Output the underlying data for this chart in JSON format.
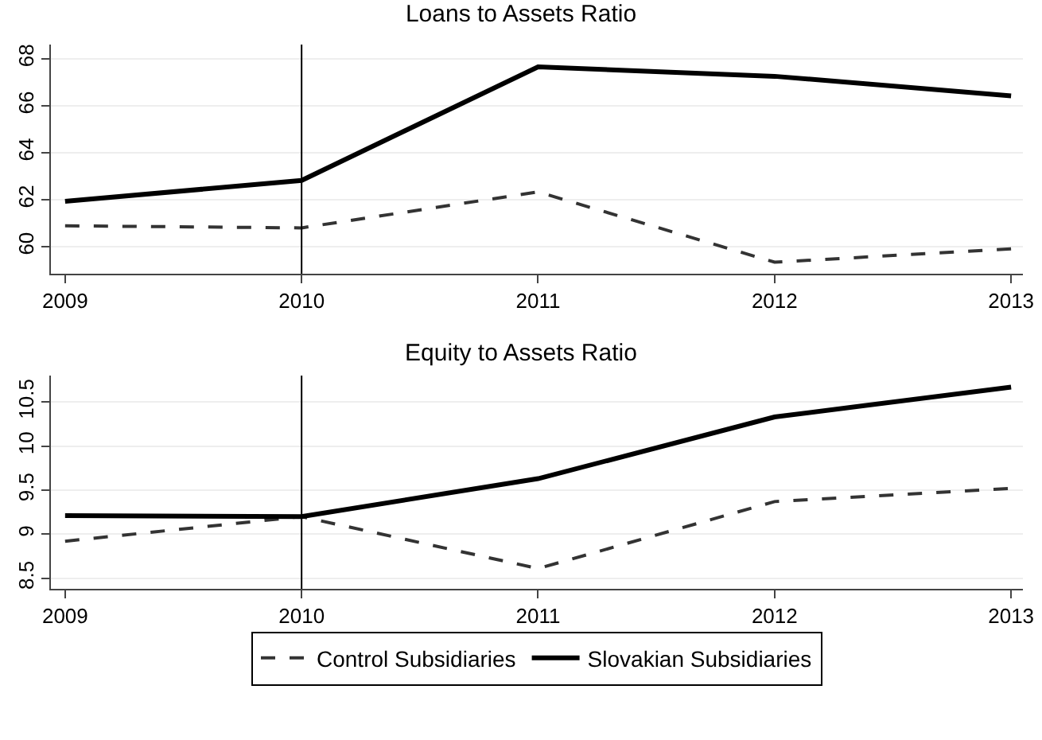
{
  "chart_data": [
    {
      "type": "line",
      "title": "Loans to Assets Ratio",
      "x": [
        2009,
        2010,
        2011,
        2012,
        2013
      ],
      "xlim": [
        2008.94,
        2013.05
      ],
      "xticks": [
        2009,
        2010,
        2011,
        2012,
        2013
      ],
      "ylim": [
        58.85,
        68.6
      ],
      "yticks": [
        60,
        62,
        64,
        66,
        68
      ],
      "grid": "y",
      "legend": false,
      "ref_lines": [
        {
          "axis": "x",
          "value": 2010,
          "color": "#000000"
        }
      ],
      "series": [
        {
          "color": "#333333",
          "line_style": "dashed",
          "values": [
            60.89,
            60.8,
            62.33,
            59.34,
            59.91
          ]
        },
        {
          "color": "#000000",
          "line_style": "solid",
          "values": [
            61.93,
            62.82,
            67.65,
            67.25,
            66.42
          ]
        }
      ]
    },
    {
      "type": "line",
      "title": "Equity to Assets Ratio",
      "x": [
        2009,
        2010,
        2011,
        2012,
        2013
      ],
      "xlim": [
        2008.94,
        2013.05
      ],
      "xticks": [
        2009,
        2010,
        2011,
        2012,
        2013
      ],
      "ylim": [
        8.38,
        10.8
      ],
      "yticks": [
        8.5,
        9,
        9.5,
        10,
        10.5
      ],
      "grid": "y",
      "legend": "bottom",
      "ref_lines": [
        {
          "axis": "x",
          "value": 2010,
          "color": "#000000"
        }
      ],
      "series": [
        {
          "name": "Control Subsidiaries",
          "color": "#333333",
          "line_style": "dashed",
          "values": [
            8.92,
            9.2,
            8.61,
            9.37,
            9.52
          ]
        },
        {
          "name": "Slovakian Subsidiaries",
          "color": "#000000",
          "line_style": "solid",
          "values": [
            9.21,
            9.2,
            9.63,
            10.33,
            10.67
          ]
        }
      ]
    }
  ]
}
